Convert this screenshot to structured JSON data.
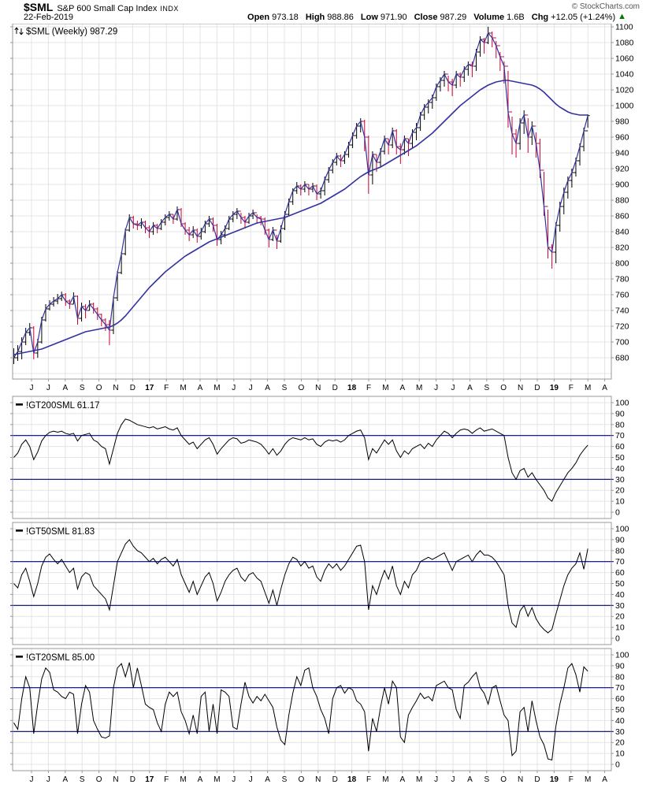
{
  "header": {
    "symbol": "$SML",
    "name": "S&P 600 Small Cap Index",
    "exchange": "INDX",
    "date": "22-Feb-2019",
    "fields": [
      {
        "label": "Open",
        "value": "973.18"
      },
      {
        "label": "High",
        "value": "988.86"
      },
      {
        "label": "Low",
        "value": "971.90"
      },
      {
        "label": "Close",
        "value": "987.29"
      },
      {
        "label": "Volume",
        "value": "1.6B"
      },
      {
        "label": "Chg",
        "value": "+12.05 (+1.24%)"
      }
    ],
    "change_icon": "▲",
    "change_direction": "up",
    "copyright": "© StockCharts.com"
  },
  "colors": {
    "up": "#000000",
    "down": "#cc0033",
    "price_line": "#3333a0",
    "ma_line": "#3333a0",
    "panel_line": "#000000",
    "threshold": "#000080",
    "grid": "#e4e4e4",
    "border": "#999999",
    "up_triangle": "#007800"
  },
  "axis": {
    "x_labels": [
      "J",
      "J",
      "A",
      "S",
      "O",
      "N",
      "D",
      "17",
      "F",
      "M",
      "A",
      "M",
      "J",
      "J",
      "A",
      "S",
      "O",
      "N",
      "D",
      "18",
      "F",
      "M",
      "A",
      "M",
      "J",
      "J",
      "A",
      "S",
      "O",
      "N",
      "D",
      "19",
      "F",
      "M",
      "A"
    ],
    "bold_labels": [
      "17",
      "18",
      "19"
    ]
  },
  "chart_data": [
    {
      "type": "candlestick",
      "legend": "$SML (Weekly) 987.29",
      "timeframe": "Weekly",
      "last": 987.29,
      "ylim": [
        653,
        1104
      ],
      "yticks": [
        680,
        700,
        720,
        740,
        760,
        780,
        800,
        820,
        840,
        860,
        880,
        900,
        920,
        940,
        960,
        980,
        1000,
        1020,
        1040,
        1060,
        1080,
        1100
      ],
      "weeks": [
        [
          692,
          672,
          680
        ],
        [
          696,
          676,
          688
        ],
        [
          706,
          678,
          700
        ],
        [
          718,
          696,
          712
        ],
        [
          724,
          708,
          718
        ],
        [
          720,
          678,
          686
        ],
        [
          704,
          680,
          700
        ],
        [
          732,
          698,
          728
        ],
        [
          748,
          726,
          742
        ],
        [
          753,
          740,
          748
        ],
        [
          757,
          745,
          752
        ],
        [
          761,
          748,
          755
        ],
        [
          764,
          752,
          760
        ],
        [
          762,
          746,
          752
        ],
        [
          754,
          742,
          748
        ],
        [
          763,
          748,
          758
        ],
        [
          759,
          722,
          730
        ],
        [
          750,
          726,
          745
        ],
        [
          748,
          730,
          740
        ],
        [
          753,
          740,
          748
        ],
        [
          750,
          736,
          742
        ],
        [
          744,
          728,
          735
        ],
        [
          736,
          720,
          728
        ],
        [
          730,
          714,
          722
        ],
        [
          728,
          696,
          715
        ],
        [
          758,
          710,
          756
        ],
        [
          790,
          752,
          788
        ],
        [
          814,
          786,
          812
        ],
        [
          844,
          810,
          842
        ],
        [
          862,
          840,
          858
        ],
        [
          860,
          844,
          850
        ],
        [
          854,
          842,
          848
        ],
        [
          857,
          844,
          852
        ],
        [
          854,
          838,
          845
        ],
        [
          848,
          832,
          840
        ],
        [
          852,
          836,
          848
        ],
        [
          850,
          838,
          844
        ],
        [
          856,
          842,
          852
        ],
        [
          862,
          848,
          858
        ],
        [
          866,
          854,
          862
        ],
        [
          862,
          850,
          856
        ],
        [
          872,
          854,
          868
        ],
        [
          870,
          846,
          850
        ],
        [
          852,
          836,
          842
        ],
        [
          846,
          828,
          836
        ],
        [
          847,
          832,
          842
        ],
        [
          844,
          826,
          834
        ],
        [
          845,
          830,
          840
        ],
        [
          854,
          838,
          850
        ],
        [
          860,
          846,
          856
        ],
        [
          858,
          840,
          848
        ],
        [
          850,
          822,
          830
        ],
        [
          841,
          824,
          836
        ],
        [
          848,
          832,
          844
        ],
        [
          860,
          842,
          856
        ],
        [
          866,
          852,
          862
        ],
        [
          870,
          856,
          866
        ],
        [
          864,
          850,
          858
        ],
        [
          860,
          844,
          852
        ],
        [
          864,
          850,
          860
        ],
        [
          868,
          856,
          864
        ],
        [
          862,
          850,
          858
        ],
        [
          860,
          848,
          856
        ],
        [
          858,
          836,
          842
        ],
        [
          844,
          820,
          830
        ],
        [
          846,
          828,
          842
        ],
        [
          836,
          818,
          828
        ],
        [
          848,
          826,
          844
        ],
        [
          866,
          842,
          862
        ],
        [
          882,
          860,
          878
        ],
        [
          895,
          874,
          892
        ],
        [
          903,
          888,
          898
        ],
        [
          900,
          886,
          894
        ],
        [
          904,
          890,
          900
        ],
        [
          900,
          886,
          894
        ],
        [
          902,
          890,
          898
        ],
        [
          900,
          880,
          888
        ],
        [
          896,
          882,
          892
        ],
        [
          910,
          886,
          906
        ],
        [
          922,
          902,
          918
        ],
        [
          932,
          914,
          928
        ],
        [
          940,
          924,
          936
        ],
        [
          938,
          922,
          930
        ],
        [
          942,
          926,
          938
        ],
        [
          954,
          934,
          950
        ],
        [
          966,
          946,
          962
        ],
        [
          978,
          958,
          974
        ],
        [
          984,
          966,
          980
        ],
        [
          982,
          942,
          960
        ],
        [
          962,
          888,
          912
        ],
        [
          942,
          900,
          938
        ],
        [
          938,
          916,
          928
        ],
        [
          946,
          922,
          942
        ],
        [
          962,
          938,
          958
        ],
        [
          958,
          938,
          950
        ],
        [
          972,
          946,
          968
        ],
        [
          970,
          938,
          948
        ],
        [
          952,
          926,
          944
        ],
        [
          962,
          938,
          958
        ],
        [
          958,
          936,
          952
        ],
        [
          970,
          946,
          966
        ],
        [
          978,
          956,
          972
        ],
        [
          992,
          968,
          988
        ],
        [
          1002,
          982,
          998
        ],
        [
          1008,
          990,
          1004
        ],
        [
          1014,
          996,
          1010
        ],
        [
          1028,
          1006,
          1024
        ],
        [
          1036,
          1018,
          1032
        ],
        [
          1044,
          1024,
          1040
        ],
        [
          1038,
          1018,
          1030
        ],
        [
          1034,
          1012,
          1026
        ],
        [
          1044,
          1022,
          1040
        ],
        [
          1042,
          1024,
          1036
        ],
        [
          1050,
          1030,
          1046
        ],
        [
          1056,
          1038,
          1052
        ],
        [
          1056,
          1036,
          1050
        ],
        [
          1072,
          1044,
          1068
        ],
        [
          1088,
          1062,
          1084
        ],
        [
          1086,
          1066,
          1080
        ],
        [
          1100,
          1078,
          1092
        ],
        [
          1094,
          1074,
          1086
        ],
        [
          1082,
          1060,
          1076
        ],
        [
          1068,
          1044,
          1062
        ],
        [
          1056,
          1028,
          1050
        ],
        [
          1044,
          972,
          992
        ],
        [
          986,
          938,
          964
        ],
        [
          970,
          934,
          952
        ],
        [
          984,
          944,
          978
        ],
        [
          994,
          964,
          988
        ],
        [
          984,
          940,
          960
        ],
        [
          980,
          950,
          974
        ],
        [
          966,
          934,
          952
        ],
        [
          958,
          908,
          918
        ],
        [
          916,
          860,
          872
        ],
        [
          868,
          806,
          820
        ],
        [
          824,
          793,
          814
        ],
        [
          852,
          800,
          848
        ],
        [
          878,
          840,
          872
        ],
        [
          896,
          862,
          890
        ],
        [
          910,
          882,
          905
        ],
        [
          920,
          896,
          915
        ],
        [
          934,
          910,
          930
        ],
        [
          952,
          924,
          948
        ],
        [
          972,
          942,
          968
        ],
        [
          988.86,
          971.9,
          987.29
        ]
      ],
      "ma40": [
        684,
        685,
        686,
        687,
        688,
        689,
        690,
        691,
        693,
        695,
        697,
        699,
        701,
        703,
        705,
        707,
        709,
        711,
        713,
        714,
        715,
        716,
        717,
        718,
        719,
        721,
        724,
        728,
        733,
        739,
        745,
        751,
        757,
        763,
        769,
        774,
        779,
        784,
        789,
        793,
        797,
        801,
        805,
        809,
        812,
        815,
        818,
        821,
        824,
        827,
        829,
        831,
        833,
        835,
        837,
        839,
        841,
        843,
        845,
        847,
        849,
        851,
        852,
        853,
        854,
        855,
        856,
        857,
        858,
        860,
        862,
        864,
        866,
        868,
        870,
        872,
        874,
        876,
        879,
        882,
        885,
        888,
        891,
        894,
        898,
        902,
        906,
        910,
        913,
        916,
        918,
        920,
        922,
        925,
        928,
        931,
        934,
        937,
        940,
        943,
        946,
        949,
        953,
        957,
        961,
        965,
        970,
        975,
        980,
        985,
        990,
        995,
        1000,
        1004,
        1008,
        1012,
        1016,
        1020,
        1023,
        1026,
        1028,
        1030,
        1031,
        1032,
        1032,
        1031,
        1030,
        1029,
        1028,
        1027,
        1026,
        1024,
        1021,
        1017,
        1012,
        1007,
        1002,
        998,
        995,
        992,
        990,
        989,
        988,
        988,
        988
      ]
    },
    {
      "type": "line",
      "legend": "!GT200SML 61.17",
      "symbol": "!GT200SML",
      "last": 61.17,
      "ylim": [
        0,
        100
      ],
      "yticks": [
        0,
        10,
        20,
        30,
        40,
        50,
        60,
        70,
        80,
        90,
        100
      ],
      "hlines": [
        70,
        30
      ],
      "values": [
        50,
        54,
        62,
        66,
        60,
        48,
        55,
        65,
        70,
        73,
        74,
        73,
        74,
        72,
        71,
        72,
        65,
        70,
        71,
        72,
        66,
        64,
        60,
        58,
        44,
        58,
        72,
        80,
        85,
        84,
        82,
        80,
        79,
        78,
        77,
        78,
        76,
        77,
        78,
        76,
        75,
        77,
        70,
        66,
        62,
        64,
        58,
        62,
        66,
        68,
        62,
        53,
        58,
        62,
        66,
        68,
        67,
        63,
        64,
        66,
        65,
        64,
        62,
        58,
        53,
        58,
        52,
        56,
        62,
        66,
        68,
        67,
        66,
        68,
        66,
        67,
        62,
        60,
        64,
        66,
        65,
        66,
        64,
        66,
        70,
        72,
        74,
        75,
        68,
        48,
        58,
        54,
        60,
        66,
        62,
        66,
        56,
        50,
        56,
        53,
        58,
        60,
        62,
        58,
        63,
        60,
        66,
        70,
        74,
        72,
        68,
        72,
        75,
        76,
        75,
        72,
        75,
        77,
        74,
        75,
        76,
        74,
        72,
        70,
        50,
        36,
        30,
        38,
        40,
        32,
        36,
        30,
        25,
        20,
        13,
        10,
        18,
        24,
        30,
        36,
        40,
        45,
        52,
        57,
        61.17
      ]
    },
    {
      "type": "line",
      "legend": "!GT50SML 81.83",
      "symbol": "!GT50SML",
      "last": 81.83,
      "ylim": [
        0,
        100
      ],
      "yticks": [
        0,
        10,
        20,
        30,
        40,
        50,
        60,
        70,
        80,
        90,
        100
      ],
      "hlines": [
        70,
        30
      ],
      "values": [
        50,
        46,
        58,
        64,
        52,
        38,
        50,
        66,
        74,
        77,
        72,
        68,
        72,
        66,
        60,
        64,
        45,
        56,
        60,
        58,
        48,
        44,
        40,
        36,
        26,
        48,
        70,
        78,
        86,
        90,
        84,
        80,
        78,
        74,
        70,
        73,
        68,
        72,
        74,
        70,
        66,
        72,
        58,
        50,
        42,
        52,
        40,
        48,
        56,
        60,
        50,
        34,
        42,
        52,
        58,
        62,
        64,
        56,
        52,
        58,
        60,
        55,
        52,
        42,
        32,
        44,
        30,
        45,
        58,
        68,
        74,
        72,
        66,
        70,
        64,
        66,
        56,
        52,
        62,
        68,
        64,
        68,
        62,
        66,
        72,
        78,
        84,
        85,
        70,
        26,
        48,
        40,
        52,
        62,
        54,
        66,
        48,
        40,
        52,
        46,
        58,
        62,
        70,
        72,
        74,
        72,
        74,
        76,
        78,
        70,
        62,
        70,
        72,
        74,
        76,
        70,
        76,
        80,
        76,
        76,
        74,
        70,
        64,
        58,
        30,
        14,
        10,
        25,
        30,
        20,
        28,
        18,
        12,
        8,
        5,
        8,
        22,
        35,
        48,
        58,
        64,
        68,
        78,
        63,
        81.83
      ]
    },
    {
      "type": "line",
      "legend": "!GT20SML 85.00",
      "symbol": "!GT20SML",
      "last": 85.0,
      "ylim": [
        0,
        100
      ],
      "yticks": [
        0,
        10,
        20,
        30,
        40,
        50,
        60,
        70,
        80,
        90,
        100
      ],
      "hlines": [
        70,
        30
      ],
      "values": [
        38,
        32,
        60,
        80,
        70,
        28,
        55,
        78,
        88,
        84,
        68,
        66,
        62,
        60,
        66,
        64,
        28,
        55,
        72,
        66,
        40,
        32,
        25,
        24,
        26,
        70,
        88,
        92,
        80,
        93,
        70,
        88,
        72,
        55,
        52,
        50,
        38,
        30,
        55,
        66,
        62,
        66,
        48,
        40,
        28,
        45,
        28,
        62,
        66,
        30,
        55,
        28,
        68,
        66,
        62,
        34,
        32,
        55,
        75,
        62,
        56,
        62,
        58,
        64,
        58,
        52,
        34,
        22,
        18,
        45,
        65,
        80,
        72,
        86,
        88,
        70,
        62,
        50,
        42,
        28,
        60,
        70,
        72,
        65,
        70,
        68,
        58,
        55,
        48,
        12,
        42,
        30,
        52,
        70,
        55,
        76,
        70,
        25,
        20,
        45,
        52,
        58,
        65,
        60,
        62,
        58,
        72,
        74,
        76,
        70,
        68,
        50,
        42,
        72,
        75,
        80,
        84,
        70,
        65,
        55,
        70,
        72,
        58,
        45,
        40,
        8,
        12,
        48,
        52,
        30,
        58,
        40,
        25,
        18,
        5,
        4,
        35,
        55,
        70,
        88,
        92,
        82,
        66,
        89,
        85.0
      ]
    }
  ]
}
